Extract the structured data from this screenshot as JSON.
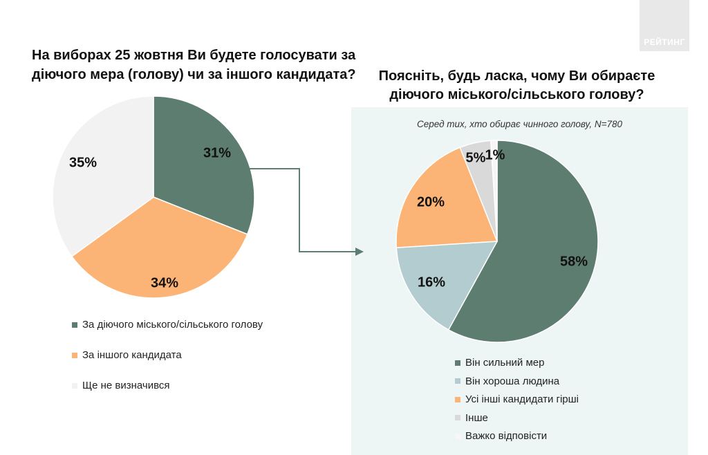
{
  "brand": {
    "logo_text": "РЕЙТИНГ"
  },
  "left": {
    "question": "На виборах 25 жовтня Ви будете голосувати за діючого мера (голову) чи за іншого кандидата?"
  },
  "right": {
    "question": "Поясніть, будь ласка, чому Ви обираєте діючого міського/сільського голову?",
    "subtitle": "Серед тих, хто обирає чинного голову, N=780"
  },
  "chart_data": [
    {
      "type": "pie",
      "title": "На виборах 25 жовтня Ви будете голосувати за діючого мера (голову) чи за іншого кандидата?",
      "labels": [
        "За діючого міського/сільського голову",
        "За іншого кандидата",
        "Ще не визначився"
      ],
      "values": [
        31,
        34,
        35
      ],
      "value_labels": [
        "31%",
        "34%",
        "35%"
      ],
      "colors": [
        "#5d7d71",
        "#fbb475",
        "#f2f2f2"
      ],
      "legend_position": "bottom"
    },
    {
      "type": "pie",
      "title": "Поясніть, будь ласка, чому Ви обираєте діючого міського/сільського голову?",
      "subtitle": "Серед тих, хто обирає чинного голову, N=780",
      "labels": [
        "Він сильний мер",
        "Він хороша людина",
        "Усі інші кандидати гірші",
        "Інше",
        "Важко відповісти"
      ],
      "values": [
        58,
        16,
        20,
        5,
        1
      ],
      "value_labels": [
        "58%",
        "16%",
        "20%",
        "5%",
        "1%"
      ],
      "colors": [
        "#5d7d71",
        "#b3ccd0",
        "#fbb475",
        "#d9d9d9",
        "#f6f6f6"
      ],
      "legend_position": "bottom"
    }
  ]
}
